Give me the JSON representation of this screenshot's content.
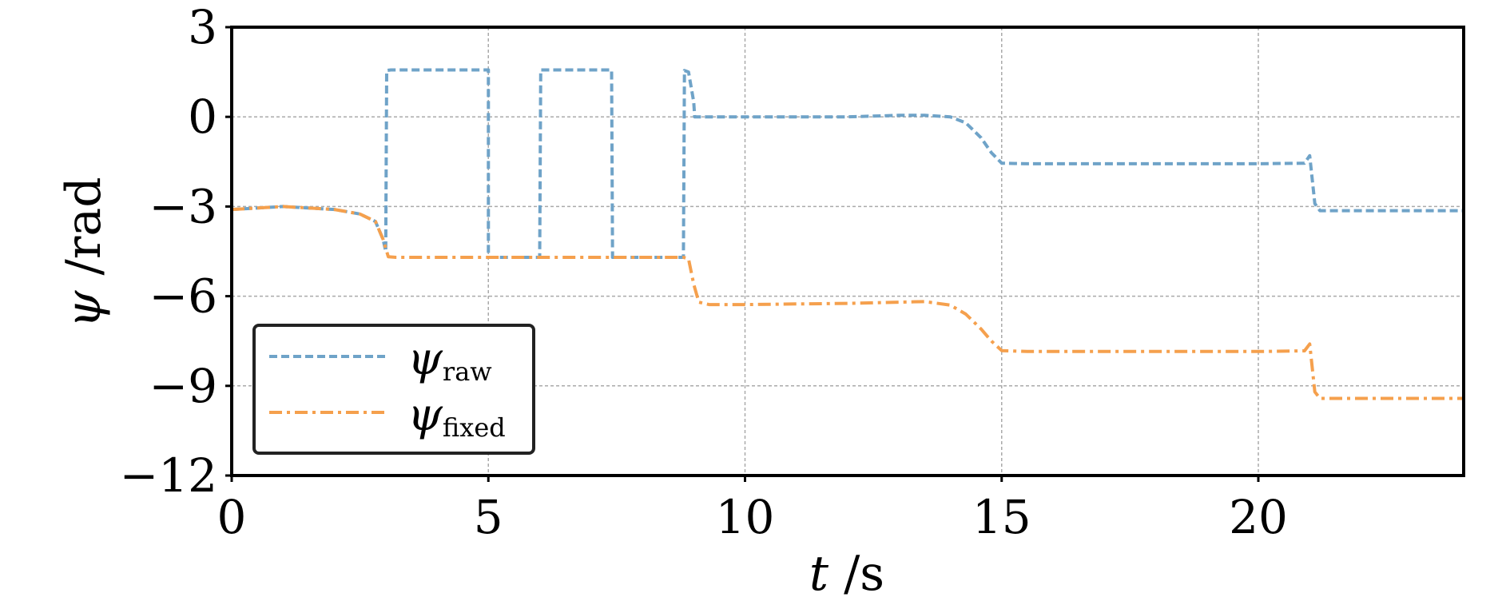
{
  "chart_data": {
    "type": "line",
    "xlabel": {
      "symbol": "t",
      "unit": " /s"
    },
    "ylabel": {
      "symbol": "ψ",
      "unit": " /rad"
    },
    "xlim": [
      0,
      24
    ],
    "ylim": [
      -12,
      3
    ],
    "xticks": [
      0,
      5,
      10,
      15,
      20
    ],
    "xtick_labels": [
      "0",
      "5",
      "10",
      "15",
      "20"
    ],
    "yticks": [
      3,
      0,
      -3,
      -6,
      -9,
      -12
    ],
    "ytick_labels": [
      "3",
      "0",
      "−3",
      "−6",
      "−9",
      "−12"
    ],
    "grid": true,
    "legend_position": "lower-left",
    "series": [
      {
        "name": "ψraw",
        "name_symbol": "ψ",
        "name_sub": "raw",
        "color": "#6fa3c8",
        "dash": "dashed",
        "x": [
          0,
          0.5,
          1,
          1.5,
          2,
          2.5,
          2.8,
          2.95,
          3.0,
          3.02,
          3.1,
          5.0,
          5.0,
          5.02,
          6.0,
          6.02,
          7.4,
          7.42,
          8.8,
          8.82,
          8.9,
          9.0,
          9.02,
          10,
          11,
          12,
          13,
          13.5,
          14,
          14.3,
          14.6,
          14.8,
          15.0,
          15.5,
          16,
          18,
          20,
          20.9,
          21.0,
          21.1,
          21.2,
          22,
          23,
          24
        ],
        "y": [
          -3.1,
          -3.05,
          -3.0,
          -3.05,
          -3.1,
          -3.25,
          -3.5,
          -4.1,
          -4.5,
          1.55,
          1.57,
          1.57,
          -4.7,
          -4.7,
          -4.7,
          1.57,
          1.57,
          -4.7,
          -4.7,
          1.55,
          1.5,
          0.5,
          0.0,
          0.0,
          0.0,
          0.0,
          0.05,
          0.05,
          0.0,
          -0.2,
          -0.7,
          -1.2,
          -1.55,
          -1.57,
          -1.57,
          -1.57,
          -1.57,
          -1.55,
          -1.3,
          -2.9,
          -3.14,
          -3.14,
          -3.14,
          -3.14
        ]
      },
      {
        "name": "ψfixed",
        "name_symbol": "ψ",
        "name_sub": "fixed",
        "color": "#f5a04d",
        "dash": "dashdot",
        "x": [
          0,
          0.5,
          1,
          1.5,
          2,
          2.5,
          2.8,
          2.95,
          3.05,
          3.2,
          5,
          6,
          7.4,
          8.8,
          8.9,
          9.0,
          9.1,
          9.3,
          10,
          11,
          12,
          13,
          13.5,
          14,
          14.3,
          14.6,
          14.8,
          15.0,
          15.5,
          16,
          18,
          20,
          20.9,
          21.0,
          21.1,
          21.2,
          22,
          23,
          24
        ],
        "y": [
          -3.1,
          -3.05,
          -3.0,
          -3.05,
          -3.1,
          -3.25,
          -3.5,
          -4.1,
          -4.68,
          -4.7,
          -4.7,
          -4.7,
          -4.7,
          -4.7,
          -4.75,
          -5.6,
          -6.2,
          -6.28,
          -6.28,
          -6.26,
          -6.24,
          -6.2,
          -6.18,
          -6.3,
          -6.6,
          -7.1,
          -7.5,
          -7.82,
          -7.85,
          -7.85,
          -7.85,
          -7.85,
          -7.83,
          -7.6,
          -9.2,
          -9.42,
          -9.42,
          -9.42,
          -9.42
        ]
      }
    ]
  }
}
